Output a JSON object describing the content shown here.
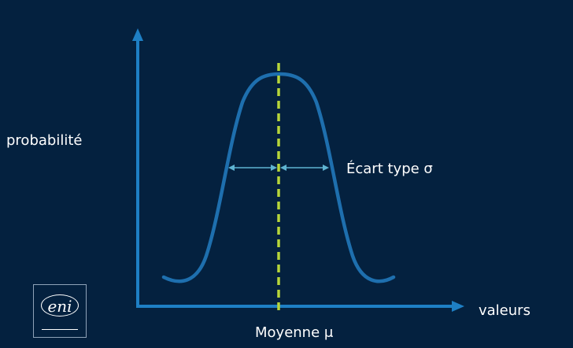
{
  "labels": {
    "y_axis": "probabilité",
    "x_axis": "valeurs",
    "mean": "Moyenne μ",
    "std_dev": "Écart type σ"
  },
  "logo": {
    "text": "eni"
  },
  "colors": {
    "background": "#04213f",
    "axis": "#1e7fc4",
    "curve": "#1e6fae",
    "mean_line": "#b7d63a",
    "sigma_arrows": "#5fb4d2",
    "text": "#ffffff"
  }
}
